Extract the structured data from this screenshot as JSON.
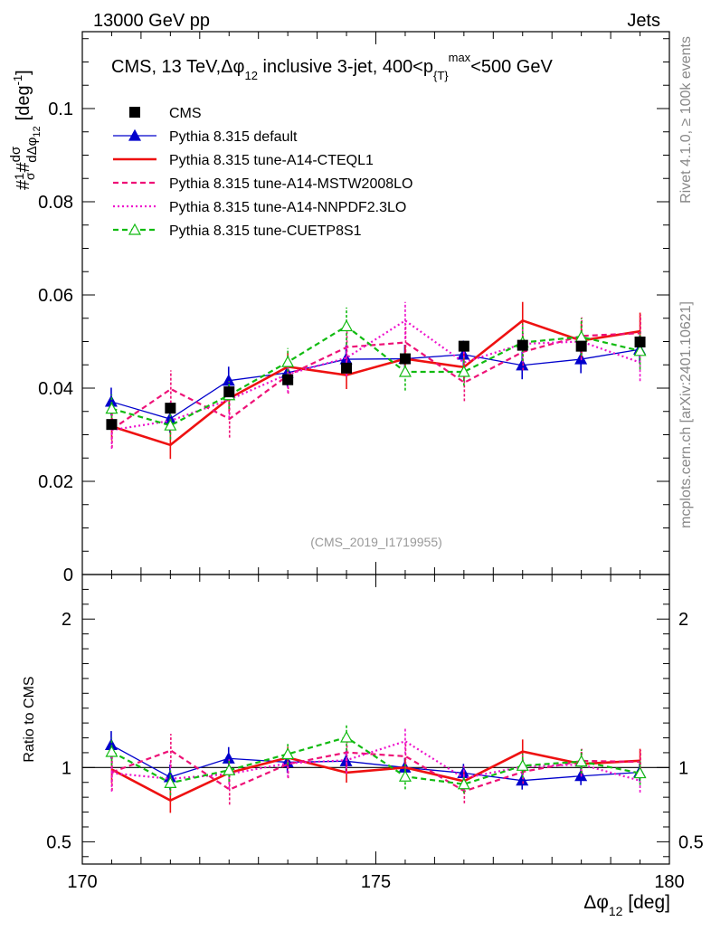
{
  "header": {
    "left": "13000 GeV pp",
    "right": "Jets"
  },
  "side_labels": {
    "rivet": "Rivet 4.1.0, ≥ 100k events",
    "mcplots": "mcplots.cern.ch [arXiv:2401.10621]"
  },
  "chart_data": {
    "type": "line",
    "title": "CMS, 13 TeV, Δφ₁₂ inclusive 3-jet, 400<pₜᵐᵃˣ<500 GeV",
    "title_parts": {
      "a": "CMS, 13 TeV,Δφ",
      "a_sub": "12",
      "b": " inclusive 3-jet, 400<p",
      "b_sub": "{T}",
      "b_sup": "max",
      "c": "<500 GeV"
    },
    "watermark": "(CMS_2019_I1719955)",
    "xlabel": "Δφ",
    "xlabel_sub": "12",
    "xlabel_unit": " [deg]",
    "ylabel": "#frac{1}{σ}#frac{dσ}{dΔφ₁₂} [deg⁻¹]",
    "ratio_ylabel": "Ratio to CMS",
    "xlim": [
      170,
      180
    ],
    "ylim": [
      0,
      0.1165
    ],
    "ratio_ylim": [
      0.35,
      2.3
    ],
    "x_ticks": [
      170,
      175,
      180
    ],
    "y_ticks": [
      0,
      0.02,
      0.04,
      0.06,
      0.08,
      0.1
    ],
    "y_tick_labels": [
      "0",
      "0.02",
      "0.04",
      "0.06",
      "0.08",
      "0.1"
    ],
    "ratio_ticks": [
      0.5,
      1,
      2
    ],
    "ratio_tick_labels": [
      "0.5",
      "1",
      "2"
    ],
    "x": [
      170.5,
      171.5,
      172.5,
      173.5,
      174.5,
      175.5,
      176.5,
      177.5,
      178.5,
      179.5
    ],
    "data": {
      "name": "CMS",
      "values": [
        0.0322,
        0.0357,
        0.0392,
        0.0418,
        0.0443,
        0.0463,
        0.049,
        0.0492,
        0.049,
        0.0499
      ],
      "errors": [
        0.001,
        0.001,
        0.001,
        0.001,
        0.001,
        0.001,
        0.001,
        0.001,
        0.001,
        0.001
      ]
    },
    "series": [
      {
        "name": "Pythia 8.315 default",
        "color": "#0000cc",
        "dash": "",
        "marker": "triangle-filled",
        "values": [
          0.0371,
          0.0334,
          0.0416,
          0.0433,
          0.0462,
          0.0463,
          0.0472,
          0.0449,
          0.0462,
          0.0483
        ],
        "errors": [
          0.003,
          0.003,
          0.003,
          0.003,
          0.003,
          0.003,
          0.003,
          0.003,
          0.003,
          0.003
        ]
      },
      {
        "name": "Pythia 8.315 tune-A14-CTEQL1",
        "color": "#ee1111",
        "dash": "",
        "marker": "none",
        "values": [
          0.0318,
          0.0278,
          0.0378,
          0.0446,
          0.0428,
          0.0463,
          0.0445,
          0.0545,
          0.0502,
          0.0522
        ],
        "errors": [
          0.003,
          0.003,
          0.003,
          0.003,
          0.003,
          0.003,
          0.003,
          0.004,
          0.004,
          0.004
        ]
      },
      {
        "name": "Pythia 8.315 tune-A14-MSTW2008LO",
        "color": "#ee1177",
        "dash": "6,4",
        "marker": "none",
        "values": [
          0.0312,
          0.0398,
          0.0334,
          0.0428,
          0.0488,
          0.0498,
          0.0412,
          0.0478,
          0.0512,
          0.0518
        ],
        "errors": [
          0.004,
          0.004,
          0.004,
          0.004,
          0.004,
          0.004,
          0.004,
          0.004,
          0.004,
          0.004
        ]
      },
      {
        "name": "Pythia 8.315 tune-A14-NNPDF2.3LO",
        "color": "#ee11cc",
        "dash": "2,3",
        "marker": "none",
        "values": [
          0.031,
          0.033,
          0.0375,
          0.043,
          0.0465,
          0.0545,
          0.0455,
          0.0495,
          0.05,
          0.0455
        ],
        "errors": [
          0.004,
          0.004,
          0.004,
          0.004,
          0.004,
          0.004,
          0.004,
          0.004,
          0.004,
          0.004
        ]
      },
      {
        "name": "Pythia 8.315 tune-CUETP8S1",
        "color": "#11bb11",
        "dash": "6,4",
        "marker": "triangle-open",
        "values": [
          0.0356,
          0.032,
          0.0385,
          0.0456,
          0.0533,
          0.0435,
          0.0435,
          0.0498,
          0.051,
          0.048
        ],
        "errors": [
          0.003,
          0.003,
          0.003,
          0.003,
          0.004,
          0.004,
          0.003,
          0.004,
          0.004,
          0.004
        ]
      }
    ]
  }
}
